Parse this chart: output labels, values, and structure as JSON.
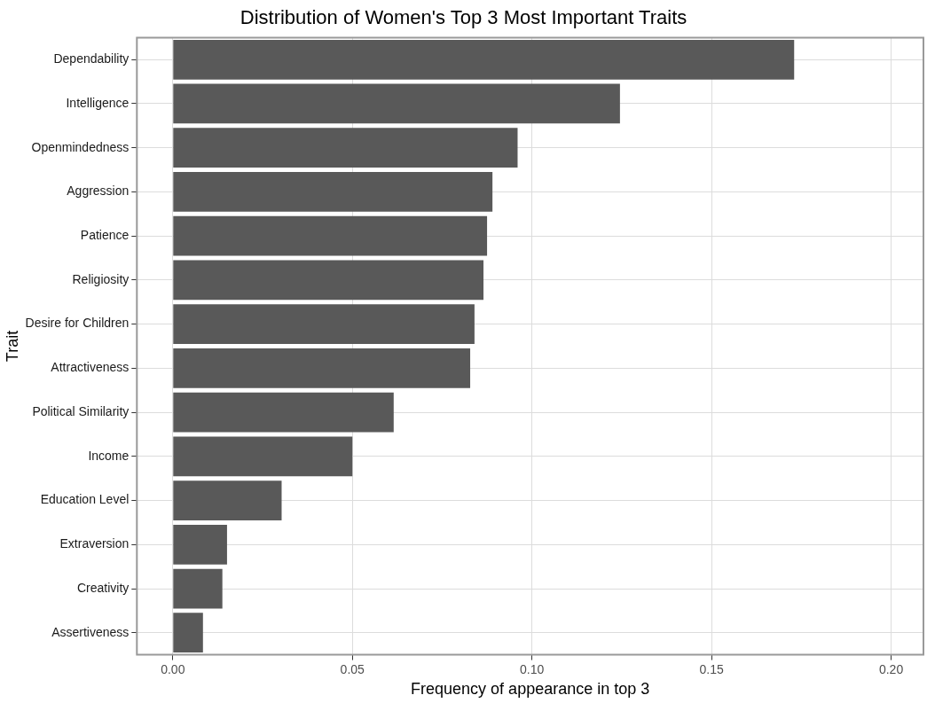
{
  "chart_data": {
    "type": "bar",
    "orientation": "horizontal",
    "title": "Distribution of Women's Top 3 Most Important Traits",
    "xlabel": "Frequency of appearance in top 3",
    "ylabel": "Trait",
    "categories": [
      "Dependability",
      "Intelligence",
      "Openmindedness",
      "Aggression",
      "Patience",
      "Religiosity",
      "Desire for Children",
      "Attractiveness",
      "Political Similarity",
      "Income",
      "Education Level",
      "Extraversion",
      "Creativity",
      "Assertiveness"
    ],
    "values": [
      0.173,
      0.1245,
      0.096,
      0.089,
      0.0875,
      0.0865,
      0.084,
      0.0828,
      0.0615,
      0.05,
      0.0303,
      0.0151,
      0.0138,
      0.0084
    ],
    "color": "#595959",
    "xlim": [
      -0.01,
      0.209
    ],
    "xticks": [
      {
        "value": 0,
        "label": "0.00"
      },
      {
        "value": 0.05,
        "label": "0.05"
      },
      {
        "value": 0.1,
        "label": "0.10"
      },
      {
        "value": 0.15,
        "label": "0.15"
      },
      {
        "value": 0.2,
        "label": "0.20"
      }
    ],
    "grid": true
  }
}
